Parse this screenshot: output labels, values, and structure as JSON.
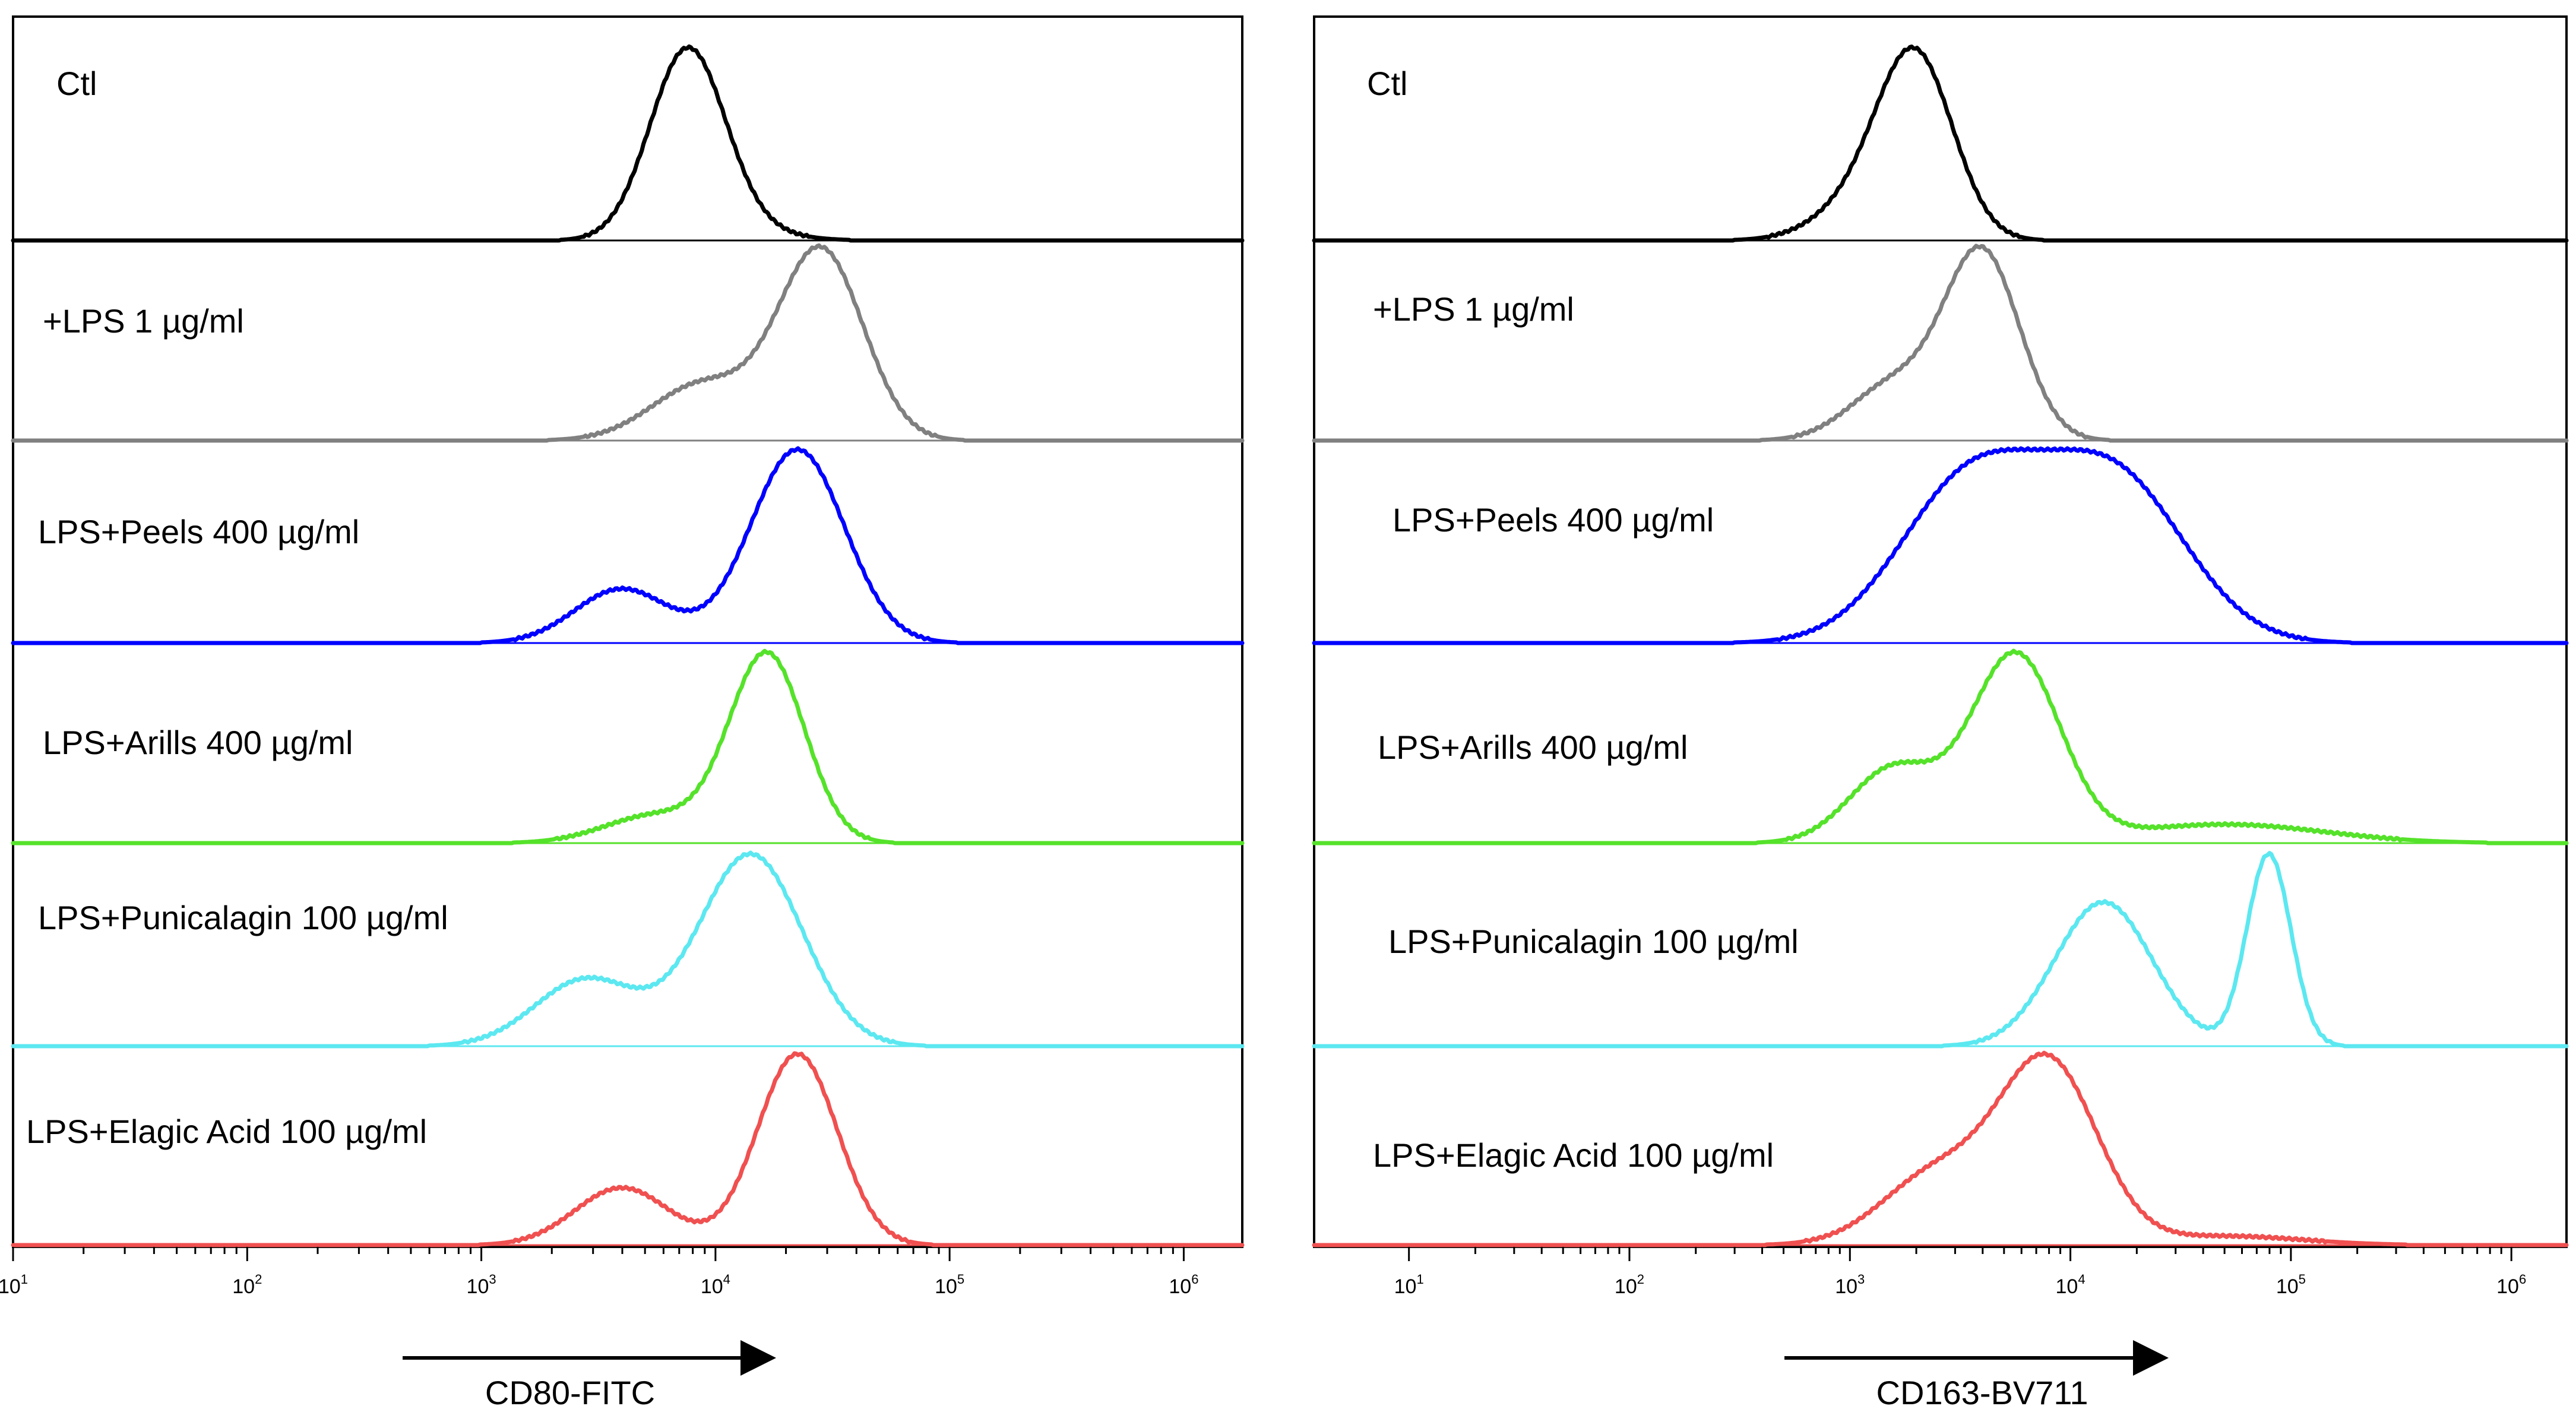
{
  "chart_data": [
    {
      "type": "histogram",
      "title": "",
      "xlabel": "CD80-FITC",
      "x_scale": "log",
      "xlim": [
        1,
        6.25
      ],
      "x_ticks": [
        {
          "base": "10",
          "exp": "1",
          "value": 1
        },
        {
          "base": "10",
          "exp": "2",
          "value": 2
        },
        {
          "base": "10",
          "exp": "3",
          "value": 3
        },
        {
          "base": "10",
          "exp": "4",
          "value": 4
        },
        {
          "base": "10",
          "exp": "5",
          "value": 5
        },
        {
          "base": "10",
          "exp": "6",
          "value": 6
        }
      ],
      "series": [
        {
          "name": "Ctl",
          "color": "#000000",
          "peaks": [
            [
              4.1,
              0.05,
              0.2
            ],
            [
              3.88,
              1.0,
              0.16
            ]
          ],
          "tail": 0.04
        },
        {
          "name": "+LPS 1 µg/ml",
          "color": "#808080",
          "peaks": [
            [
              3.95,
              0.3,
              0.22
            ],
            [
              4.45,
              1.0,
              0.18
            ]
          ],
          "tail": 0.03
        },
        {
          "name": "LPS+Peels 400 µg/ml",
          "color": "#0000ff",
          "peaks": [
            [
              3.6,
              0.28,
              0.2
            ],
            [
              4.35,
              1.0,
              0.2
            ]
          ],
          "tail": 0.02
        },
        {
          "name": "LPS+Arills 400 µg/ml",
          "color": "#55e22a",
          "peaks": [
            [
              3.75,
              0.15,
              0.22
            ],
            [
              4.22,
              1.0,
              0.16
            ]
          ],
          "tail": 0.02
        },
        {
          "name": "LPS+Punicalagin 100 µg/ml",
          "color": "#5ce8f0",
          "peaks": [
            [
              3.45,
              0.35,
              0.22
            ],
            [
              4.15,
              1.0,
              0.22
            ]
          ],
          "tail": 0.02
        },
        {
          "name": "LPS+Elagic Acid 100 µg/ml",
          "color": "#f05050",
          "peaks": [
            [
              3.6,
              0.3,
              0.2
            ],
            [
              4.35,
              1.0,
              0.17
            ]
          ],
          "tail": 0.02
        }
      ]
    },
    {
      "type": "histogram",
      "title": "",
      "xlabel": "CD163-BV711",
      "x_scale": "log",
      "xlim": [
        0.57,
        6.25
      ],
      "x_ticks": [
        {
          "base": "10",
          "exp": "1",
          "value": 1
        },
        {
          "base": "10",
          "exp": "2",
          "value": 2
        },
        {
          "base": "10",
          "exp": "3",
          "value": 3
        },
        {
          "base": "10",
          "exp": "4",
          "value": 4
        },
        {
          "base": "10",
          "exp": "5",
          "value": 5
        },
        {
          "base": "10",
          "exp": "6",
          "value": 6
        }
      ],
      "series": [
        {
          "name": "Ctl",
          "color": "#000000",
          "peaks": [
            [
              3.3,
              1.0,
              0.17
            ],
            [
              3.05,
              0.2,
              0.2
            ]
          ],
          "tail": 0.04
        },
        {
          "name": "+LPS 1 µg/ml",
          "color": "#808080",
          "peaks": [
            [
              3.6,
              1.0,
              0.17
            ],
            [
              3.2,
              0.3,
              0.2
            ]
          ],
          "tail": 0.03
        },
        {
          "name": "LPS+Peels 400 µg/ml",
          "color": "#0000ff",
          "peaks": [
            [
              3.55,
              0.9,
              0.32
            ],
            [
              4.2,
              0.9,
              0.32
            ]
          ],
          "tail": 0.02
        },
        {
          "name": "LPS+Arills 400 µg/ml",
          "color": "#55e22a",
          "peaks": [
            [
              3.75,
              1.0,
              0.2
            ],
            [
              3.2,
              0.4,
              0.2
            ],
            [
              4.7,
              0.1,
              0.45
            ]
          ],
          "tail": 0.02
        },
        {
          "name": "LPS+Punicalagin 100 µg/ml",
          "color": "#5ce8f0",
          "peaks": [
            [
              4.15,
              0.75,
              0.22
            ],
            [
              4.9,
              1.0,
              0.1
            ]
          ],
          "tail": 0.02
        },
        {
          "name": "LPS+Elagic Acid 100 µg/ml",
          "color": "#f05050",
          "peaks": [
            [
              3.9,
              1.0,
              0.22
            ],
            [
              3.4,
              0.4,
              0.25
            ],
            [
              4.7,
              0.05,
              0.35
            ]
          ],
          "tail": 0.02
        }
      ]
    }
  ]
}
